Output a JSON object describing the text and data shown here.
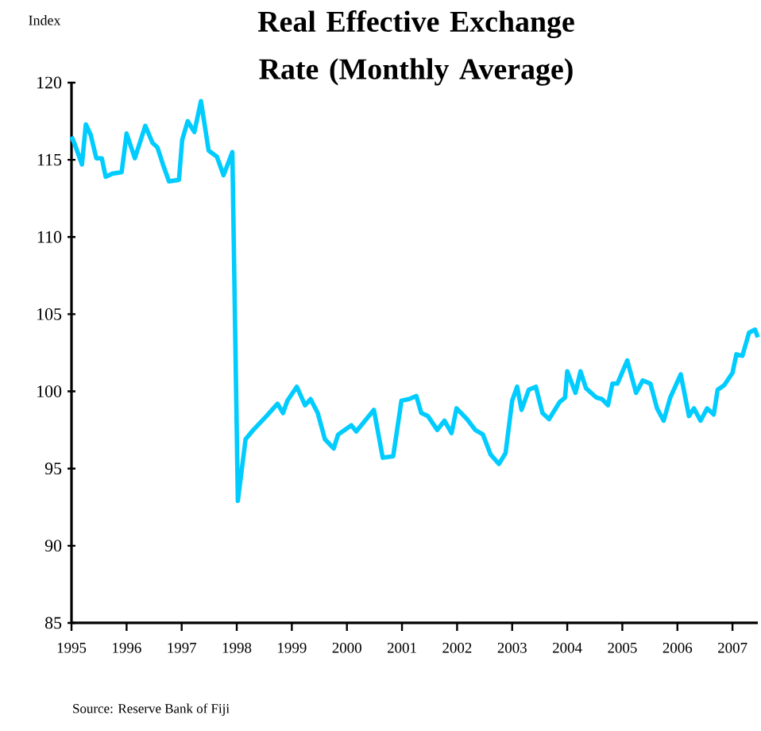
{
  "chart_data": {
    "type": "line",
    "title": "Real Effective Exchange Rate (Monthly Average)",
    "ylabel": "Index",
    "annotations": [
      "Source:  Reserve Bank of Fiji"
    ],
    "xlim": [
      1995,
      2007.46
    ],
    "xticks": [
      1995,
      1996,
      1997,
      1998,
      1999,
      2000,
      2001,
      2002,
      2003,
      2004,
      2005,
      2006,
      2007
    ],
    "ylim": [
      85,
      120
    ],
    "yticks": [
      85,
      90,
      95,
      100,
      105,
      110,
      115,
      120
    ],
    "line_style": "solid",
    "series": [
      {
        "color": "#00ccff",
        "x": [
          1995.0,
          1995.05,
          1995.19,
          1995.26,
          1995.35,
          1995.45,
          1995.55,
          1995.62,
          1995.74,
          1995.91,
          1996.0,
          1996.15,
          1996.34,
          1996.47,
          1996.56,
          1996.66,
          1996.77,
          1996.95,
          1997.01,
          1997.11,
          1997.23,
          1997.35,
          1997.49,
          1997.64,
          1997.76,
          1997.92,
          1998.02,
          1998.16,
          1998.3,
          1998.54,
          1998.74,
          1998.84,
          1998.92,
          1999.09,
          1999.24,
          1999.34,
          1999.47,
          1999.6,
          1999.76,
          1999.84,
          2000.08,
          2000.17,
          2000.49,
          2000.65,
          2000.84,
          2000.99,
          2001.13,
          2001.26,
          2001.35,
          2001.47,
          2001.64,
          2001.77,
          2001.9,
          2001.99,
          2002.18,
          2002.33,
          2002.47,
          2002.61,
          2002.76,
          2002.88,
          2003.0,
          2003.09,
          2003.17,
          2003.3,
          2003.43,
          2003.55,
          2003.67,
          2003.86,
          2003.96,
          2004.0,
          2004.15,
          2004.24,
          2004.34,
          2004.53,
          2004.63,
          2004.74,
          2004.82,
          2004.91,
          2005.09,
          2005.25,
          2005.37,
          2005.51,
          2005.63,
          2005.75,
          2005.87,
          2006.06,
          2006.21,
          2006.3,
          2006.42,
          2006.54,
          2006.66,
          2006.73,
          2006.85,
          2007.0,
          2007.07,
          2007.18,
          2007.3,
          2007.41,
          2007.46
        ],
        "values": [
          116.5,
          116.1,
          114.7,
          117.3,
          116.6,
          115.1,
          115.1,
          113.9,
          114.1,
          114.2,
          116.7,
          115.1,
          117.2,
          116.1,
          115.8,
          114.7,
          113.6,
          113.7,
          116.3,
          117.5,
          116.8,
          118.8,
          115.6,
          115.2,
          114.0,
          115.5,
          92.9,
          96.9,
          97.5,
          98.4,
          99.2,
          98.6,
          99.4,
          100.3,
          99.1,
          99.5,
          98.6,
          96.9,
          96.3,
          97.2,
          97.8,
          97.4,
          98.8,
          95.7,
          95.8,
          99.4,
          99.5,
          99.7,
          98.6,
          98.4,
          97.5,
          98.1,
          97.3,
          98.9,
          98.2,
          97.5,
          97.2,
          95.9,
          95.3,
          96.0,
          99.4,
          100.3,
          98.8,
          100.1,
          100.3,
          98.6,
          98.2,
          99.3,
          99.6,
          101.3,
          99.9,
          101.3,
          100.2,
          99.6,
          99.5,
          99.1,
          100.5,
          100.5,
          102.0,
          99.9,
          100.7,
          100.5,
          98.9,
          98.1,
          99.6,
          101.1,
          98.4,
          98.9,
          98.1,
          98.9,
          98.5,
          100.1,
          100.4,
          101.2,
          102.4,
          102.3,
          103.8,
          104.0,
          103.5
        ]
      }
    ]
  }
}
